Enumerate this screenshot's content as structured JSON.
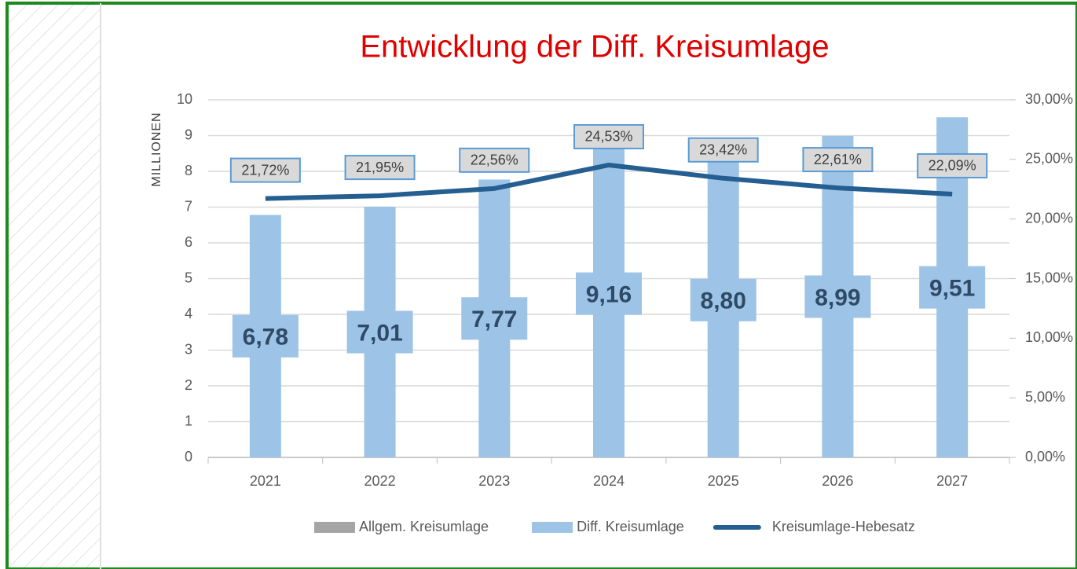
{
  "chart_data": {
    "type": "bar",
    "title": "Entwicklung der Diff. Kreisumlage",
    "y_label": "MILLIONEN",
    "categories": [
      "2021",
      "2022",
      "2023",
      "2024",
      "2025",
      "2026",
      "2027"
    ],
    "ylim": [
      0,
      10
    ],
    "yticks": [
      0,
      1,
      2,
      3,
      4,
      5,
      6,
      7,
      8,
      9,
      10
    ],
    "y2lim": [
      0,
      30
    ],
    "y2ticks": [
      {
        "value": 0,
        "label": "0,00%"
      },
      {
        "value": 5,
        "label": "5,00%"
      },
      {
        "value": 10,
        "label": "10,00%"
      },
      {
        "value": 15,
        "label": "15,00%"
      },
      {
        "value": 20,
        "label": "20,00%"
      },
      {
        "value": 25,
        "label": "25,00%"
      },
      {
        "value": 30,
        "label": "30,00%"
      }
    ],
    "grid": true,
    "series": [
      {
        "name": "Allgem. Kreisumlage",
        "type": "bar",
        "color": "#a5a5a5",
        "values": [
          null,
          null,
          null,
          null,
          null,
          null,
          null
        ]
      },
      {
        "name": "Diff. Kreisumlage",
        "type": "bar",
        "color": "#9dc3e6",
        "values": [
          6.78,
          7.01,
          7.77,
          9.16,
          8.8,
          8.99,
          9.51
        ],
        "value_labels": [
          "6,78",
          "7,01",
          "7,77",
          "9,16",
          "8,80",
          "8,99",
          "9,51"
        ]
      },
      {
        "name": "Kreisumlage-Hebesatz",
        "type": "line",
        "axis": "y2",
        "color": "#255e91",
        "values": [
          21.72,
          21.95,
          22.56,
          24.53,
          23.42,
          22.61,
          22.09
        ],
        "value_labels": [
          "21,72%",
          "21,95%",
          "22,56%",
          "24,53%",
          "23,42%",
          "22,61%",
          "22,09%"
        ]
      }
    ]
  }
}
